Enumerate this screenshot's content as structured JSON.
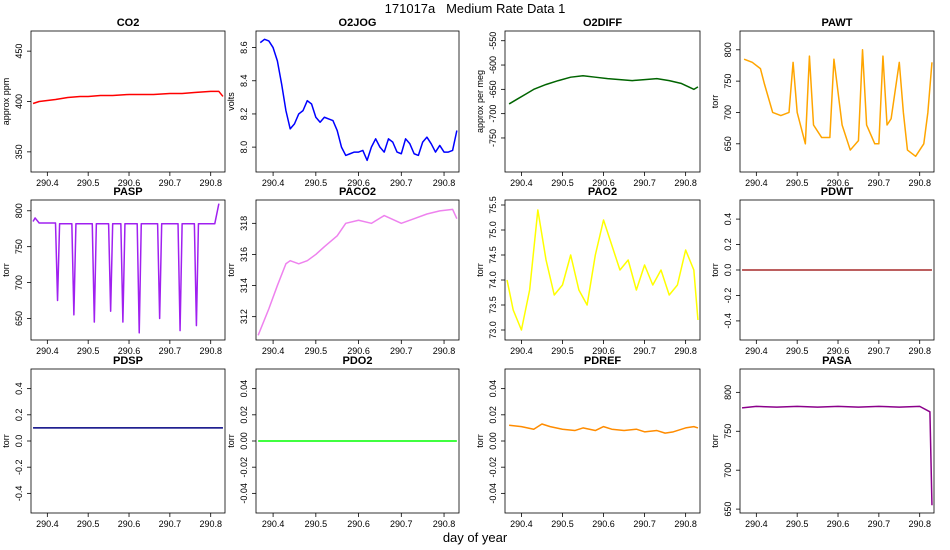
{
  "title": "171017a   Medium Rate Data 1",
  "xlabel": "day of year",
  "chart_data": [
    {
      "type": "line",
      "title": "CO2",
      "ylabel": "approx ppm",
      "color": "#ff0000",
      "xlim": [
        290.36,
        290.835
      ],
      "ylim": [
        330,
        470
      ],
      "xticks": [
        290.4,
        290.5,
        290.6,
        290.7,
        290.8
      ],
      "yticks": [
        350,
        400,
        450
      ],
      "x": [
        290.365,
        290.38,
        290.4,
        290.42,
        290.45,
        290.48,
        290.5,
        290.53,
        290.56,
        290.6,
        290.63,
        290.66,
        290.7,
        290.73,
        290.76,
        290.8,
        290.82,
        290.83
      ],
      "y": [
        398,
        400,
        401,
        402,
        404,
        405,
        405,
        406,
        406,
        407,
        407,
        407,
        408,
        408,
        409,
        410,
        410,
        405
      ]
    },
    {
      "type": "line",
      "title": "O2JOG",
      "ylabel": "volts",
      "color": "#0000ff",
      "xlim": [
        290.36,
        290.835
      ],
      "ylim": [
        7.85,
        8.7
      ],
      "xticks": [
        290.4,
        290.5,
        290.6,
        290.7,
        290.8
      ],
      "yticks": [
        8.0,
        8.2,
        8.4,
        8.6
      ],
      "x": [
        290.37,
        290.38,
        290.39,
        290.4,
        290.41,
        290.42,
        290.43,
        290.44,
        290.45,
        290.46,
        290.47,
        290.48,
        290.49,
        290.5,
        290.51,
        290.52,
        290.53,
        290.54,
        290.55,
        290.56,
        290.57,
        290.58,
        290.59,
        290.6,
        290.61,
        290.62,
        290.63,
        290.64,
        290.65,
        290.66,
        290.67,
        290.68,
        290.69,
        290.7,
        290.71,
        290.72,
        290.73,
        290.74,
        290.75,
        290.76,
        290.77,
        290.78,
        290.79,
        290.8,
        290.81,
        290.82,
        290.83
      ],
      "y": [
        8.63,
        8.65,
        8.64,
        8.6,
        8.52,
        8.38,
        8.22,
        8.11,
        8.14,
        8.2,
        8.22,
        8.28,
        8.26,
        8.18,
        8.15,
        8.18,
        8.17,
        8.16,
        8.1,
        8.0,
        7.95,
        7.96,
        7.97,
        7.97,
        7.98,
        7.92,
        8.0,
        8.05,
        8.0,
        7.97,
        8.05,
        8.03,
        7.97,
        7.96,
        8.05,
        8.02,
        7.96,
        7.95,
        8.03,
        8.06,
        8.02,
        7.97,
        8.01,
        7.97,
        7.97,
        7.98,
        8.1
      ]
    },
    {
      "type": "line",
      "title": "O2DIFF",
      "ylabel": "approx per meg",
      "color": "#006400",
      "xlim": [
        290.36,
        290.835
      ],
      "ylim": [
        -820,
        -530
      ],
      "xticks": [
        290.4,
        290.5,
        290.6,
        290.7,
        290.8
      ],
      "yticks": [
        -750,
        -700,
        -650,
        -600,
        -550
      ],
      "x": [
        290.37,
        290.39,
        290.41,
        290.43,
        290.46,
        290.49,
        290.52,
        290.55,
        290.58,
        290.61,
        290.64,
        290.67,
        290.7,
        290.73,
        290.76,
        290.79,
        290.82,
        290.83
      ],
      "y": [
        -680,
        -670,
        -660,
        -650,
        -640,
        -632,
        -625,
        -622,
        -625,
        -628,
        -630,
        -632,
        -630,
        -628,
        -632,
        -638,
        -650,
        -645
      ]
    },
    {
      "type": "line",
      "title": "PAWT",
      "ylabel": "torr",
      "color": "#ffa500",
      "xlim": [
        290.36,
        290.835
      ],
      "ylim": [
        605,
        830
      ],
      "xticks": [
        290.4,
        290.5,
        290.6,
        290.7,
        290.8
      ],
      "yticks": [
        650,
        700,
        750,
        800
      ],
      "x": [
        290.37,
        290.39,
        290.41,
        290.42,
        290.44,
        290.46,
        290.48,
        290.49,
        290.5,
        290.52,
        290.53,
        290.54,
        290.56,
        290.58,
        290.59,
        290.61,
        290.63,
        290.65,
        290.66,
        290.67,
        290.69,
        290.7,
        290.71,
        290.72,
        290.73,
        290.75,
        290.76,
        290.77,
        290.79,
        290.81,
        290.82,
        290.83
      ],
      "y": [
        785,
        780,
        770,
        745,
        700,
        695,
        700,
        780,
        700,
        650,
        790,
        680,
        660,
        660,
        785,
        680,
        640,
        655,
        800,
        680,
        650,
        650,
        790,
        680,
        690,
        780,
        700,
        640,
        630,
        650,
        700,
        780
      ]
    },
    {
      "type": "line",
      "title": "PASP",
      "ylabel": "torr",
      "color": "#a020f0",
      "xlim": [
        290.36,
        290.835
      ],
      "ylim": [
        620,
        815
      ],
      "xticks": [
        290.4,
        290.5,
        290.6,
        290.7,
        290.8
      ],
      "yticks": [
        650,
        700,
        750,
        800
      ],
      "x": [
        290.365,
        290.37,
        290.38,
        290.42,
        290.425,
        290.43,
        290.46,
        290.465,
        290.47,
        290.51,
        290.515,
        290.52,
        290.55,
        290.555,
        290.56,
        290.58,
        290.585,
        290.59,
        290.62,
        290.625,
        290.63,
        290.67,
        290.675,
        290.68,
        290.72,
        290.725,
        290.73,
        290.76,
        290.765,
        290.77,
        290.8,
        290.81,
        290.82
      ],
      "y": [
        785,
        790,
        783,
        783,
        675,
        782,
        782,
        655,
        782,
        782,
        645,
        782,
        782,
        660,
        782,
        782,
        645,
        782,
        782,
        630,
        782,
        782,
        650,
        782,
        782,
        633,
        782,
        782,
        640,
        782,
        782,
        782,
        810
      ]
    },
    {
      "type": "line",
      "title": "PACO2",
      "ylabel": "torr",
      "color": "#ee82ee",
      "xlim": [
        290.36,
        290.835
      ],
      "ylim": [
        310.5,
        319.5
      ],
      "xticks": [
        290.4,
        290.5,
        290.6,
        290.7,
        290.8
      ],
      "yticks": [
        312,
        314,
        316,
        318
      ],
      "x": [
        290.365,
        290.39,
        290.41,
        290.43,
        290.44,
        290.46,
        290.48,
        290.5,
        290.52,
        290.55,
        290.57,
        290.6,
        290.63,
        290.66,
        290.7,
        290.73,
        290.76,
        290.79,
        290.82,
        290.83
      ],
      "y": [
        310.8,
        312.5,
        314,
        315.4,
        315.6,
        315.4,
        315.6,
        316,
        316.5,
        317.2,
        318,
        318.2,
        318,
        318.5,
        318,
        318.3,
        318.6,
        318.8,
        318.9,
        318.3
      ]
    },
    {
      "type": "line",
      "title": "PAO2",
      "ylabel": "torr",
      "color": "#ffff00",
      "xlim": [
        290.36,
        290.835
      ],
      "ylim": [
        72.8,
        75.6
      ],
      "xticks": [
        290.4,
        290.5,
        290.6,
        290.7,
        290.8
      ],
      "yticks": [
        73.0,
        73.5,
        74.0,
        74.5,
        75.0,
        75.5
      ],
      "x": [
        290.365,
        290.38,
        290.4,
        290.42,
        290.44,
        290.46,
        290.48,
        290.5,
        290.52,
        290.54,
        290.56,
        290.58,
        290.6,
        290.62,
        290.64,
        290.66,
        290.68,
        290.7,
        290.72,
        290.74,
        290.76,
        290.78,
        290.8,
        290.82,
        290.83
      ],
      "y": [
        74.0,
        73.4,
        73.0,
        73.8,
        75.4,
        74.4,
        73.7,
        73.9,
        74.5,
        73.8,
        73.5,
        74.5,
        75.2,
        74.7,
        74.2,
        74.4,
        73.8,
        74.3,
        73.9,
        74.2,
        73.7,
        73.9,
        74.6,
        74.2,
        73.2
      ]
    },
    {
      "type": "line",
      "title": "PDWT",
      "ylabel": "torr",
      "color": "#a52a2a",
      "xlim": [
        290.36,
        290.835
      ],
      "ylim": [
        -0.55,
        0.55
      ],
      "xticks": [
        290.4,
        290.5,
        290.6,
        290.7,
        290.8
      ],
      "yticks": [
        -0.4,
        -0.2,
        0.0,
        0.2,
        0.4
      ],
      "x": [
        290.365,
        290.45,
        290.55,
        290.65,
        290.75,
        290.83
      ],
      "y": [
        0.0,
        0.0,
        0.0,
        0.0,
        0.0,
        0.0
      ]
    },
    {
      "type": "line",
      "title": "PDSP",
      "ylabel": "torr",
      "color": "#000080",
      "xlim": [
        290.36,
        290.835
      ],
      "ylim": [
        -0.55,
        0.55
      ],
      "xticks": [
        290.4,
        290.5,
        290.6,
        290.7,
        290.8
      ],
      "yticks": [
        -0.4,
        -0.2,
        0.0,
        0.2,
        0.4
      ],
      "x": [
        290.365,
        290.45,
        290.55,
        290.65,
        290.75,
        290.83
      ],
      "y": [
        0.1,
        0.1,
        0.1,
        0.1,
        0.1,
        0.1
      ]
    },
    {
      "type": "line",
      "title": "PDO2",
      "ylabel": "torr",
      "color": "#00ff00",
      "xlim": [
        290.36,
        290.835
      ],
      "ylim": [
        -0.055,
        0.055
      ],
      "xticks": [
        290.4,
        290.5,
        290.6,
        290.7,
        290.8
      ],
      "yticks": [
        -0.04,
        -0.02,
        0.0,
        0.02,
        0.04
      ],
      "x": [
        290.365,
        290.45,
        290.55,
        290.65,
        290.75,
        290.83
      ],
      "y": [
        0.0,
        0.0,
        0.0,
        0.0,
        0.0,
        0.0
      ]
    },
    {
      "type": "line",
      "title": "PDREF",
      "ylabel": "torr",
      "color": "#ff8c00",
      "xlim": [
        290.36,
        290.835
      ],
      "ylim": [
        -0.055,
        0.055
      ],
      "xticks": [
        290.4,
        290.5,
        290.6,
        290.7,
        290.8
      ],
      "yticks": [
        -0.04,
        -0.02,
        0.0,
        0.02,
        0.04
      ],
      "x": [
        290.37,
        290.4,
        290.43,
        290.45,
        290.47,
        290.5,
        290.53,
        290.55,
        290.58,
        290.6,
        290.62,
        290.65,
        290.68,
        290.7,
        290.73,
        290.75,
        290.77,
        290.8,
        290.82,
        290.83
      ],
      "y": [
        0.012,
        0.011,
        0.009,
        0.013,
        0.011,
        0.009,
        0.008,
        0.01,
        0.008,
        0.011,
        0.009,
        0.008,
        0.009,
        0.007,
        0.008,
        0.006,
        0.007,
        0.01,
        0.011,
        0.01
      ]
    },
    {
      "type": "line",
      "title": "PASA",
      "ylabel": "torr",
      "color": "#8b008b",
      "xlim": [
        290.36,
        290.835
      ],
      "ylim": [
        645,
        830
      ],
      "xticks": [
        290.4,
        290.5,
        290.6,
        290.7,
        290.8
      ],
      "yticks": [
        650,
        700,
        750,
        800
      ],
      "x": [
        290.365,
        290.4,
        290.45,
        290.5,
        290.55,
        290.6,
        290.65,
        290.7,
        290.75,
        290.8,
        290.825,
        290.83
      ],
      "y": [
        780,
        782,
        781,
        782,
        781,
        782,
        781,
        782,
        781,
        782,
        775,
        655
      ]
    }
  ]
}
